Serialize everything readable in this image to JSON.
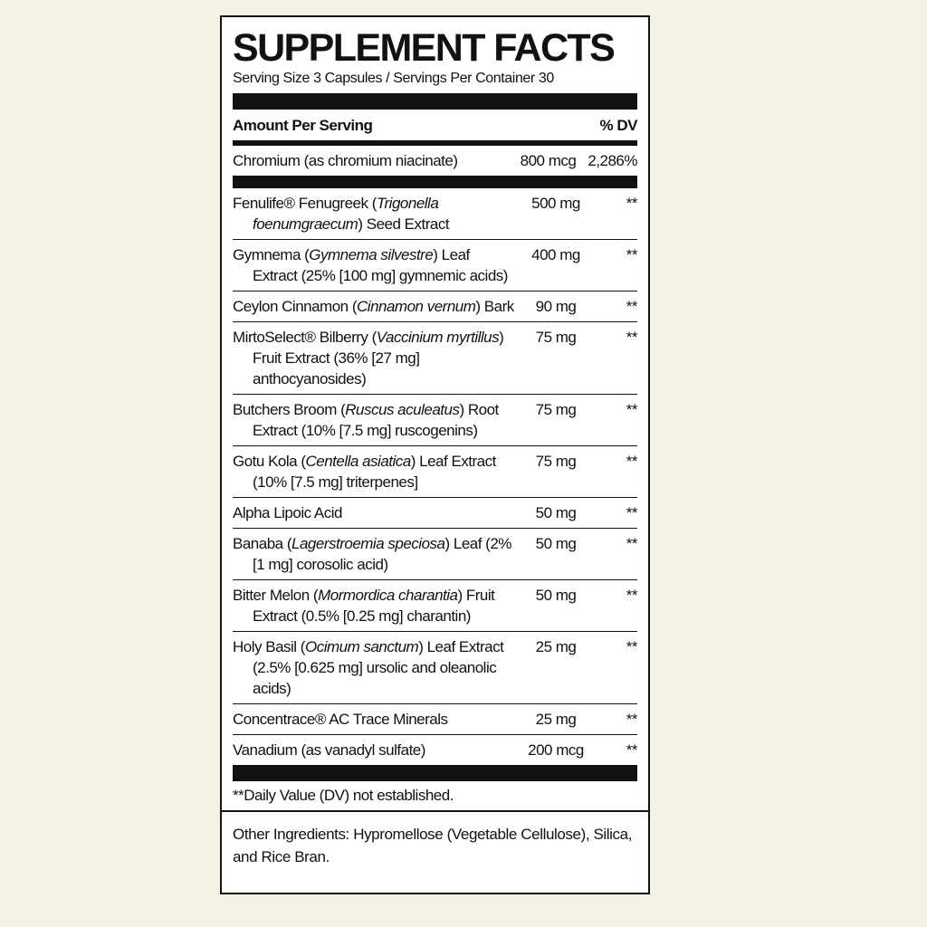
{
  "header": {
    "title": "SUPPLEMENT FACTS",
    "serving": "Serving Size 3 Capsules / Servings Per Container 30"
  },
  "table": {
    "columns": [
      "Amount Per Serving",
      "% DV"
    ],
    "sections": [
      [
        {
          "name": [
            "Chromium (as chromium niacinate)"
          ],
          "amount": "800 mcg",
          "dv": "2,286%"
        }
      ],
      [
        {
          "name": [
            "Fenulife® Fenugreek (",
            "Trigonella foenumgraecum",
            ") Seed Extract"
          ],
          "amount": "500 mg",
          "dv": "**"
        },
        {
          "name": [
            "Gymnema (",
            "Gymnema silvestre",
            ") Leaf Extract (25% [100 mg] gymnemic acids)"
          ],
          "amount": "400 mg",
          "dv": "**"
        },
        {
          "name": [
            "Ceylon Cinnamon (",
            "Cinnamon vernum",
            ") Bark"
          ],
          "amount": "90 mg",
          "dv": "**"
        },
        {
          "name": [
            "MirtoSelect® Bilberry (",
            "Vaccinium myrtillus",
            ") Fruit Extract (36% [27 mg] anthocyanosides)"
          ],
          "amount": "75 mg",
          "dv": "**"
        },
        {
          "name": [
            "Butchers Broom (",
            "Ruscus aculeatus",
            ") Root Extract (10% [7.5 mg] ruscogenins)"
          ],
          "amount": "75 mg",
          "dv": "**"
        },
        {
          "name": [
            "Gotu Kola (",
            "Centella asiatica",
            ") Leaf Extract (10% [7.5 mg] triterpenes]"
          ],
          "amount": "75 mg",
          "dv": "**"
        },
        {
          "name": [
            "Alpha Lipoic Acid"
          ],
          "amount": "50 mg",
          "dv": "**"
        },
        {
          "name": [
            "Banaba (",
            "Lagerstroemia speciosa",
            ") Leaf (2% [1 mg] corosolic acid)"
          ],
          "amount": "50 mg",
          "dv": "**"
        },
        {
          "name": [
            "Bitter Melon (",
            "Mormordica charantia",
            ") Fruit Extract (0.5% [0.25 mg] charantin)"
          ],
          "amount": "50 mg",
          "dv": "**"
        },
        {
          "name": [
            "Holy Basil (",
            "Ocimum sanctum",
            ") Leaf Extract (2.5% [0.625 mg] ursolic and oleanolic acids)"
          ],
          "amount": "25 mg",
          "dv": "**"
        },
        {
          "name": [
            "Concentrace® AC Trace Minerals"
          ],
          "amount": "25 mg",
          "dv": "**"
        },
        {
          "name": [
            "Vanadium (as vanadyl sulfate)"
          ],
          "amount": "200 mcg",
          "dv": "**"
        }
      ]
    ]
  },
  "footnote": "**Daily Value (DV) not established.",
  "other_ingredients": "Other Ingredients: Hypromellose (Vegetable Cellulose), Silica, and Rice Bran."
}
